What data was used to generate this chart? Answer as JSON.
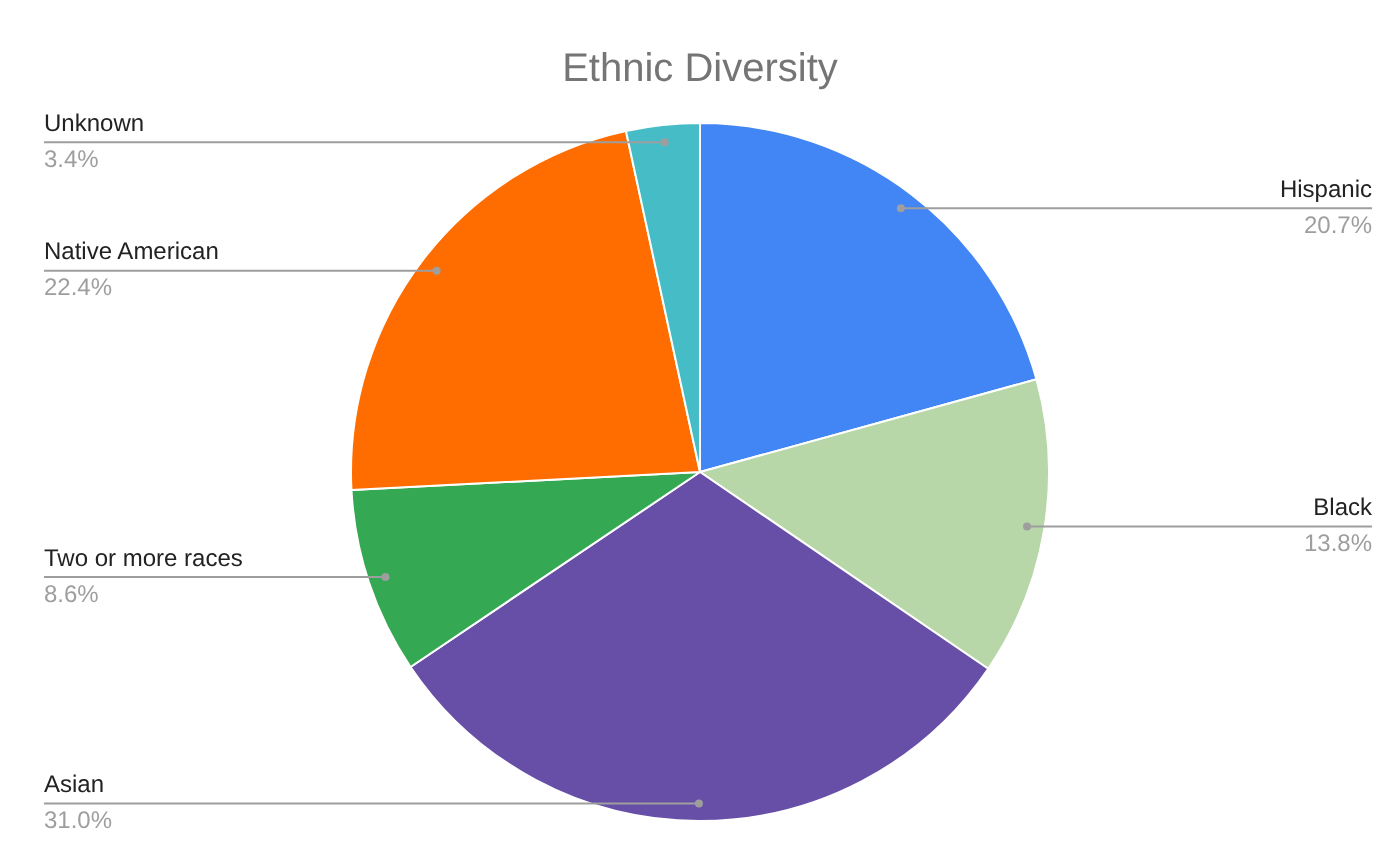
{
  "chart_data": {
    "type": "pie",
    "title": "Ethnic Diversity",
    "categories": [
      "Hispanic",
      "Black",
      "Asian",
      "Two or more races",
      "Native American",
      "Unknown"
    ],
    "values": [
      20.7,
      13.8,
      31.0,
      8.6,
      22.4,
      3.4
    ],
    "colors": [
      "#4285f4",
      "#b7d7a8",
      "#674ea7",
      "#34a853",
      "#ff6d01",
      "#46bdc6"
    ],
    "value_labels": [
      "20.7%",
      "13.8%",
      "31.0%",
      "8.6%",
      "22.4%",
      "3.4%"
    ],
    "legend": false
  }
}
